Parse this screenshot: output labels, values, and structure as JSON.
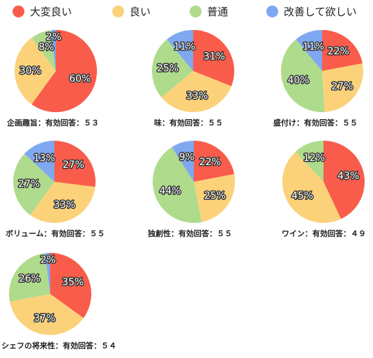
{
  "legend": [
    {
      "label": "大変良い",
      "color": "#f95c4b"
    },
    {
      "label": "良い",
      "color": "#fbd27a"
    },
    {
      "label": "普通",
      "color": "#aedb8c"
    },
    {
      "label": "改善して欲しい",
      "color": "#7fa8f0"
    }
  ],
  "chart_data": [
    {
      "type": "pie",
      "title": "企画趣旨：有効回答：５３",
      "categories": [
        "大変良い",
        "良い",
        "普通",
        "改善して欲しい"
      ],
      "values": [
        60,
        30,
        8,
        2
      ],
      "labels": [
        "60%",
        "30%",
        "8%",
        "2%"
      ]
    },
    {
      "type": "pie",
      "title": "味：有効回答：５５",
      "categories": [
        "大変良い",
        "良い",
        "普通",
        "改善して欲しい"
      ],
      "values": [
        31,
        33,
        25,
        11
      ],
      "labels": [
        "31%",
        "33%",
        "25%",
        "11%"
      ]
    },
    {
      "type": "pie",
      "title": "盛付け：有効回答：５５",
      "categories": [
        "大変良い",
        "良い",
        "普通",
        "改善して欲しい"
      ],
      "values": [
        22,
        27,
        40,
        11
      ],
      "labels": [
        "22%",
        "27%",
        "40%",
        "11%"
      ]
    },
    {
      "type": "pie",
      "title": "ボリューム：有効回答：５５",
      "categories": [
        "大変良い",
        "良い",
        "普通",
        "改善して欲しい"
      ],
      "values": [
        27,
        33,
        27,
        13
      ],
      "labels": [
        "27%",
        "33%",
        "27%",
        "13%"
      ]
    },
    {
      "type": "pie",
      "title": "独創性：有効回答：５５",
      "categories": [
        "大変良い",
        "良い",
        "普通",
        "改善して欲しい"
      ],
      "values": [
        22,
        25,
        44,
        9
      ],
      "labels": [
        "22%",
        "25%",
        "44%",
        "9%"
      ]
    },
    {
      "type": "pie",
      "title": "ワイン：有効回答：４９",
      "categories": [
        "大変良い",
        "良い",
        "普通",
        "改善して欲しい"
      ],
      "values": [
        43,
        45,
        12,
        0
      ],
      "labels": [
        "43%",
        "45%",
        "12%",
        ""
      ]
    },
    {
      "type": "pie",
      "title": "シェフの将来性：有効回答：５４",
      "categories": [
        "大変良い",
        "良い",
        "普通",
        "改善して欲しい"
      ],
      "values": [
        35,
        37,
        26,
        2
      ],
      "labels": [
        "35%",
        "37%",
        "26%",
        "2%"
      ]
    }
  ]
}
